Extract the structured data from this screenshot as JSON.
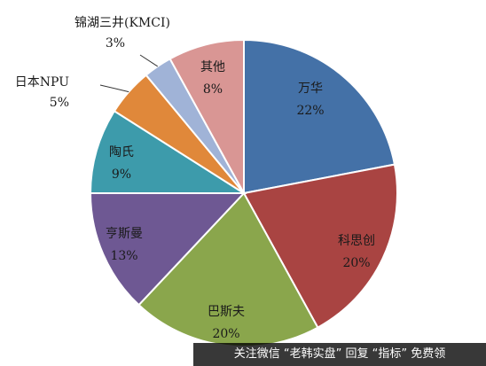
{
  "chart_data": {
    "type": "pie",
    "title": "",
    "slices": [
      {
        "label": "万华",
        "pct_label": "22%",
        "value": 22,
        "color": "#4471a7"
      },
      {
        "label": "科思创",
        "pct_label": "20%",
        "value": 20,
        "color": "#a94442"
      },
      {
        "label": "巴斯夫",
        "pct_label": "20%",
        "value": 20,
        "color": "#8aa64c"
      },
      {
        "label": "亨斯曼",
        "pct_label": "13%",
        "value": 13,
        "color": "#6e5893"
      },
      {
        "label": "陶氏",
        "pct_label": "9%",
        "value": 9,
        "color": "#3d9bab"
      },
      {
        "label": "日本NPU",
        "pct_label": "5%",
        "value": 5,
        "color": "#e0883a"
      },
      {
        "label": "锦湖三井(KMCI)",
        "pct_label": "3%",
        "value": 3,
        "color": "#a0b3d7"
      },
      {
        "label": "其他",
        "pct_label": "8%",
        "value": 8,
        "color": "#d99694"
      }
    ]
  },
  "watermark": {
    "text": "关注微信 “老韩实盘” 回复 “指标” 免费领"
  }
}
